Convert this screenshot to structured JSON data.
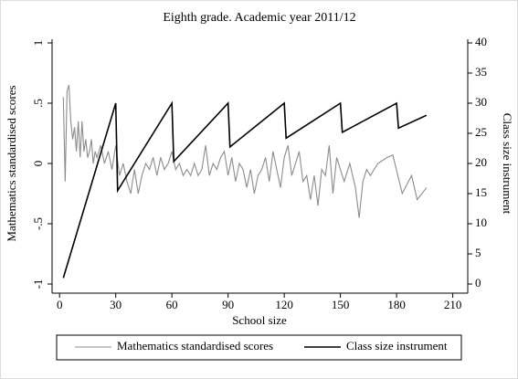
{
  "chart_data": {
    "type": "line",
    "title": "Eighth grade. Academic year 2011/12",
    "xlabel": "School size",
    "ylabel": "Mathematics standardised scores",
    "y2label": "Class size instrument",
    "xlim": [
      -4,
      218
    ],
    "xticks": [
      0,
      30,
      60,
      90,
      120,
      150,
      180,
      210
    ],
    "ylim": [
      -1,
      1
    ],
    "yticks": [
      {
        "value": -1,
        "label": "-1"
      },
      {
        "value": -0.5,
        "label": "-.5"
      },
      {
        "value": 0,
        "label": "0"
      },
      {
        "value": 0.5,
        "label": ".5"
      },
      {
        "value": 1,
        "label": "1"
      }
    ],
    "y2lim": [
      0,
      40
    ],
    "y2ticks": [
      0,
      5,
      10,
      15,
      20,
      25,
      30,
      35,
      40
    ],
    "legend": "bottom",
    "series": [
      {
        "name": "Mathematics standardised scores",
        "color": "#8c8c8c",
        "x": [
          2,
          3,
          4,
          5,
          6,
          7,
          8,
          9,
          10,
          11,
          12,
          13,
          14,
          15,
          16,
          17,
          18,
          19,
          20,
          22,
          24,
          26,
          28,
          30,
          32,
          34,
          36,
          38,
          40,
          42,
          44,
          46,
          48,
          50,
          52,
          54,
          56,
          58,
          60,
          62,
          64,
          66,
          68,
          70,
          72,
          74,
          76,
          78,
          80,
          82,
          84,
          86,
          88,
          90,
          92,
          94,
          96,
          98,
          100,
          102,
          104,
          106,
          108,
          110,
          112,
          114,
          116,
          118,
          120,
          122,
          124,
          126,
          128,
          130,
          132,
          134,
          136,
          138,
          140,
          142,
          144,
          146,
          148,
          150,
          152,
          155,
          158,
          160,
          162,
          164,
          166,
          170,
          175,
          178,
          183,
          188,
          191,
          196
        ],
        "values": [
          0.55,
          -0.15,
          0.6,
          0.65,
          0.35,
          0.2,
          0.3,
          0.1,
          0.35,
          0.05,
          0.35,
          0.1,
          0.2,
          0.05,
          0.1,
          0.2,
          0.0,
          0.1,
          0.05,
          0.15,
          0.0,
          0.1,
          -0.05,
          0.15,
          -0.1,
          0.0,
          -0.15,
          -0.25,
          -0.05,
          -0.25,
          -0.1,
          0.0,
          -0.05,
          0.05,
          -0.1,
          0.05,
          -0.05,
          0.0,
          0.1,
          -0.05,
          0.0,
          -0.1,
          -0.05,
          -0.1,
          0.0,
          -0.1,
          -0.05,
          0.15,
          -0.1,
          0.0,
          -0.05,
          0.05,
          0.1,
          -0.1,
          0.05,
          -0.15,
          0.0,
          -0.05,
          -0.2,
          -0.05,
          -0.25,
          -0.1,
          -0.05,
          0.05,
          -0.15,
          0.1,
          -0.05,
          -0.2,
          0.05,
          0.15,
          -0.1,
          0.0,
          0.1,
          -0.15,
          -0.1,
          -0.3,
          -0.1,
          -0.35,
          -0.05,
          -0.1,
          0.15,
          -0.25,
          0.05,
          -0.05,
          -0.15,
          0.0,
          -0.2,
          -0.45,
          -0.15,
          -0.05,
          -0.1,
          0.0,
          0.05,
          0.07,
          -0.25,
          -0.1,
          -0.3,
          -0.2
        ]
      },
      {
        "name": "Class size instrument",
        "color": "#000000",
        "axis": "y2",
        "x": [
          2,
          30,
          31,
          60,
          61,
          90,
          91,
          120,
          121,
          150,
          151,
          180,
          181,
          196
        ],
        "values": [
          1,
          30,
          15.5,
          30,
          20.33,
          30,
          22.75,
          30,
          24.2,
          30,
          25.17,
          30,
          25.86,
          28
        ]
      }
    ]
  }
}
